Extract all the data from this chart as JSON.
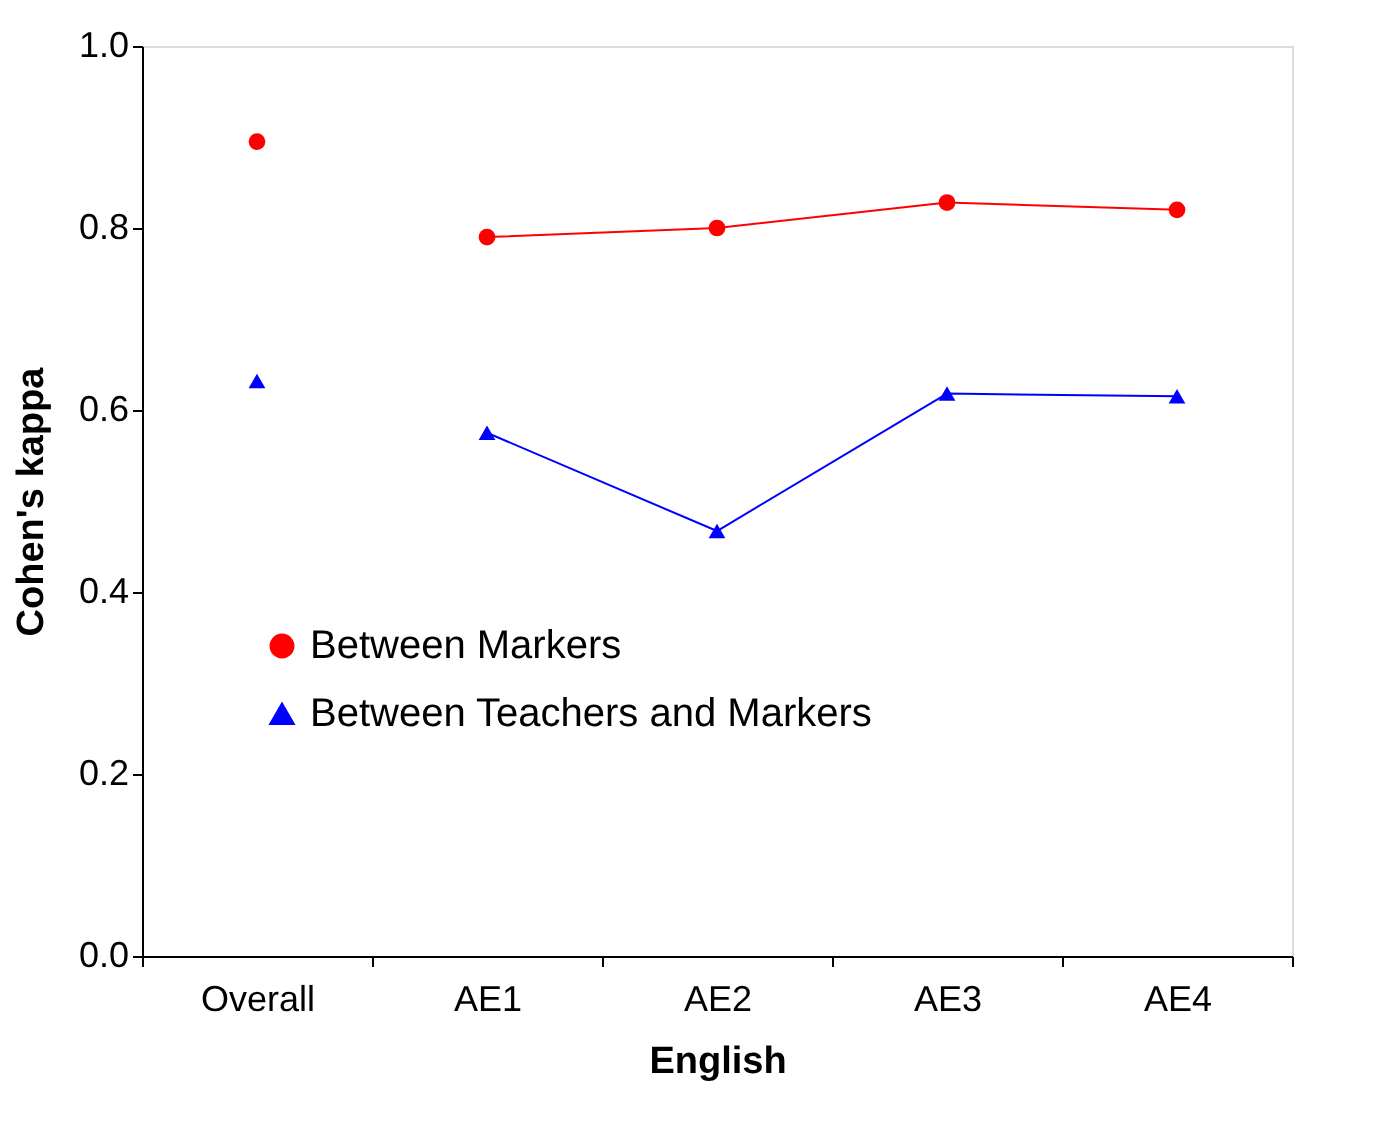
{
  "chart_data": {
    "type": "line",
    "xlabel": "English",
    "ylabel": "Cohen's kappa",
    "categories": [
      "Overall",
      "AE1",
      "AE2",
      "AE3",
      "AE4"
    ],
    "series": [
      {
        "name": "Between Markers",
        "color": "#ff0000",
        "marker": "circle",
        "values": [
          null,
          0.79,
          0.8,
          0.828,
          0.82
        ]
      },
      {
        "name": "Between Teachers and Markers",
        "color": "#0000ff",
        "marker": "triangle",
        "values": [
          null,
          0.575,
          0.467,
          0.618,
          0.615
        ]
      },
      {
        "type": "scatter",
        "color": "#ff0000",
        "marker": "circle",
        "values": [
          0.895,
          null,
          null,
          null,
          null
        ]
      },
      {
        "type": "scatter",
        "color": "#0000ff",
        "marker": "triangle",
        "values": [
          0.632,
          null,
          null,
          null,
          null
        ]
      }
    ],
    "ylim": [
      0,
      1
    ],
    "yticks": [
      {
        "value": 0,
        "label": "0.0"
      },
      {
        "value": 0.2,
        "label": "0.2"
      },
      {
        "value": 0.4,
        "label": "0.4"
      },
      {
        "value": 0.6,
        "label": "0.6"
      },
      {
        "value": 0.8,
        "label": "0.8"
      },
      {
        "value": 1,
        "label": "1.0"
      }
    ],
    "grid": false,
    "legend": "left"
  }
}
